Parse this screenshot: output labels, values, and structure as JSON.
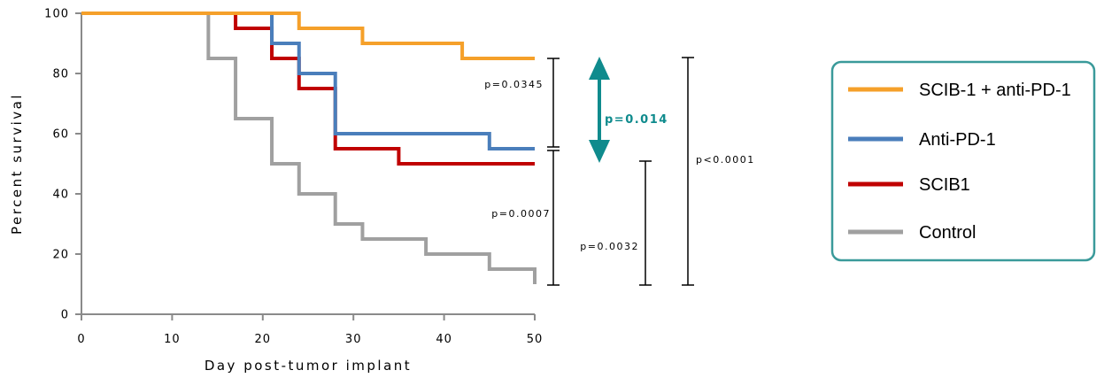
{
  "chart_data": {
    "type": "line",
    "subtype": "kaplan-meier-step",
    "xlabel": "Day post-tumor implant",
    "ylabel": "Percent survival",
    "xlim": [
      0,
      50
    ],
    "ylim": [
      0,
      100
    ],
    "xticks": [
      "0",
      "10",
      "20",
      "30",
      "40",
      "50"
    ],
    "yticks": [
      "0",
      "20",
      "40",
      "60",
      "80",
      "100"
    ],
    "grid": false,
    "legend_position": "right",
    "series": [
      {
        "name": "SCIB-1 + anti-PD-1",
        "color": "#f5a02a",
        "x": [
          0,
          24,
          31,
          42,
          50
        ],
        "y": [
          100,
          95,
          90,
          85,
          85
        ]
      },
      {
        "name": "Anti-PD-1",
        "color": "#4a7ebb",
        "x": [
          0,
          21,
          24,
          28,
          45,
          50
        ],
        "y": [
          100,
          90,
          80,
          60,
          55,
          55
        ]
      },
      {
        "name": "SCIB1",
        "color": "#c00000",
        "x": [
          0,
          17,
          21,
          24,
          28,
          35,
          50
        ],
        "y": [
          100,
          95,
          85,
          75,
          55,
          50,
          50
        ]
      },
      {
        "name": "Control",
        "color": "#a0a0a0",
        "x": [
          0,
          14,
          17,
          21,
          24,
          28,
          31,
          38,
          45,
          50
        ],
        "y": [
          100,
          85,
          65,
          50,
          40,
          30,
          25,
          20,
          15,
          10
        ]
      }
    ],
    "comparisons": [
      {
        "label": "p=0.0345",
        "y_top": 85,
        "y_bottom": 55,
        "highlight": false
      },
      {
        "label": "p=0.014",
        "y_top": 85,
        "y_bottom": 55,
        "highlight": true,
        "color": "#0f8b8d"
      },
      {
        "label": "p=0.0007",
        "y_top": 55,
        "y_bottom": 10,
        "highlight": false
      },
      {
        "label": "p=0.0032",
        "y_top": 50,
        "y_bottom": 10,
        "highlight": false
      },
      {
        "label": "p<0.0001",
        "y_top": 85,
        "y_bottom": 10,
        "highlight": false
      }
    ],
    "legend_border_color": "#3a9a9a"
  }
}
